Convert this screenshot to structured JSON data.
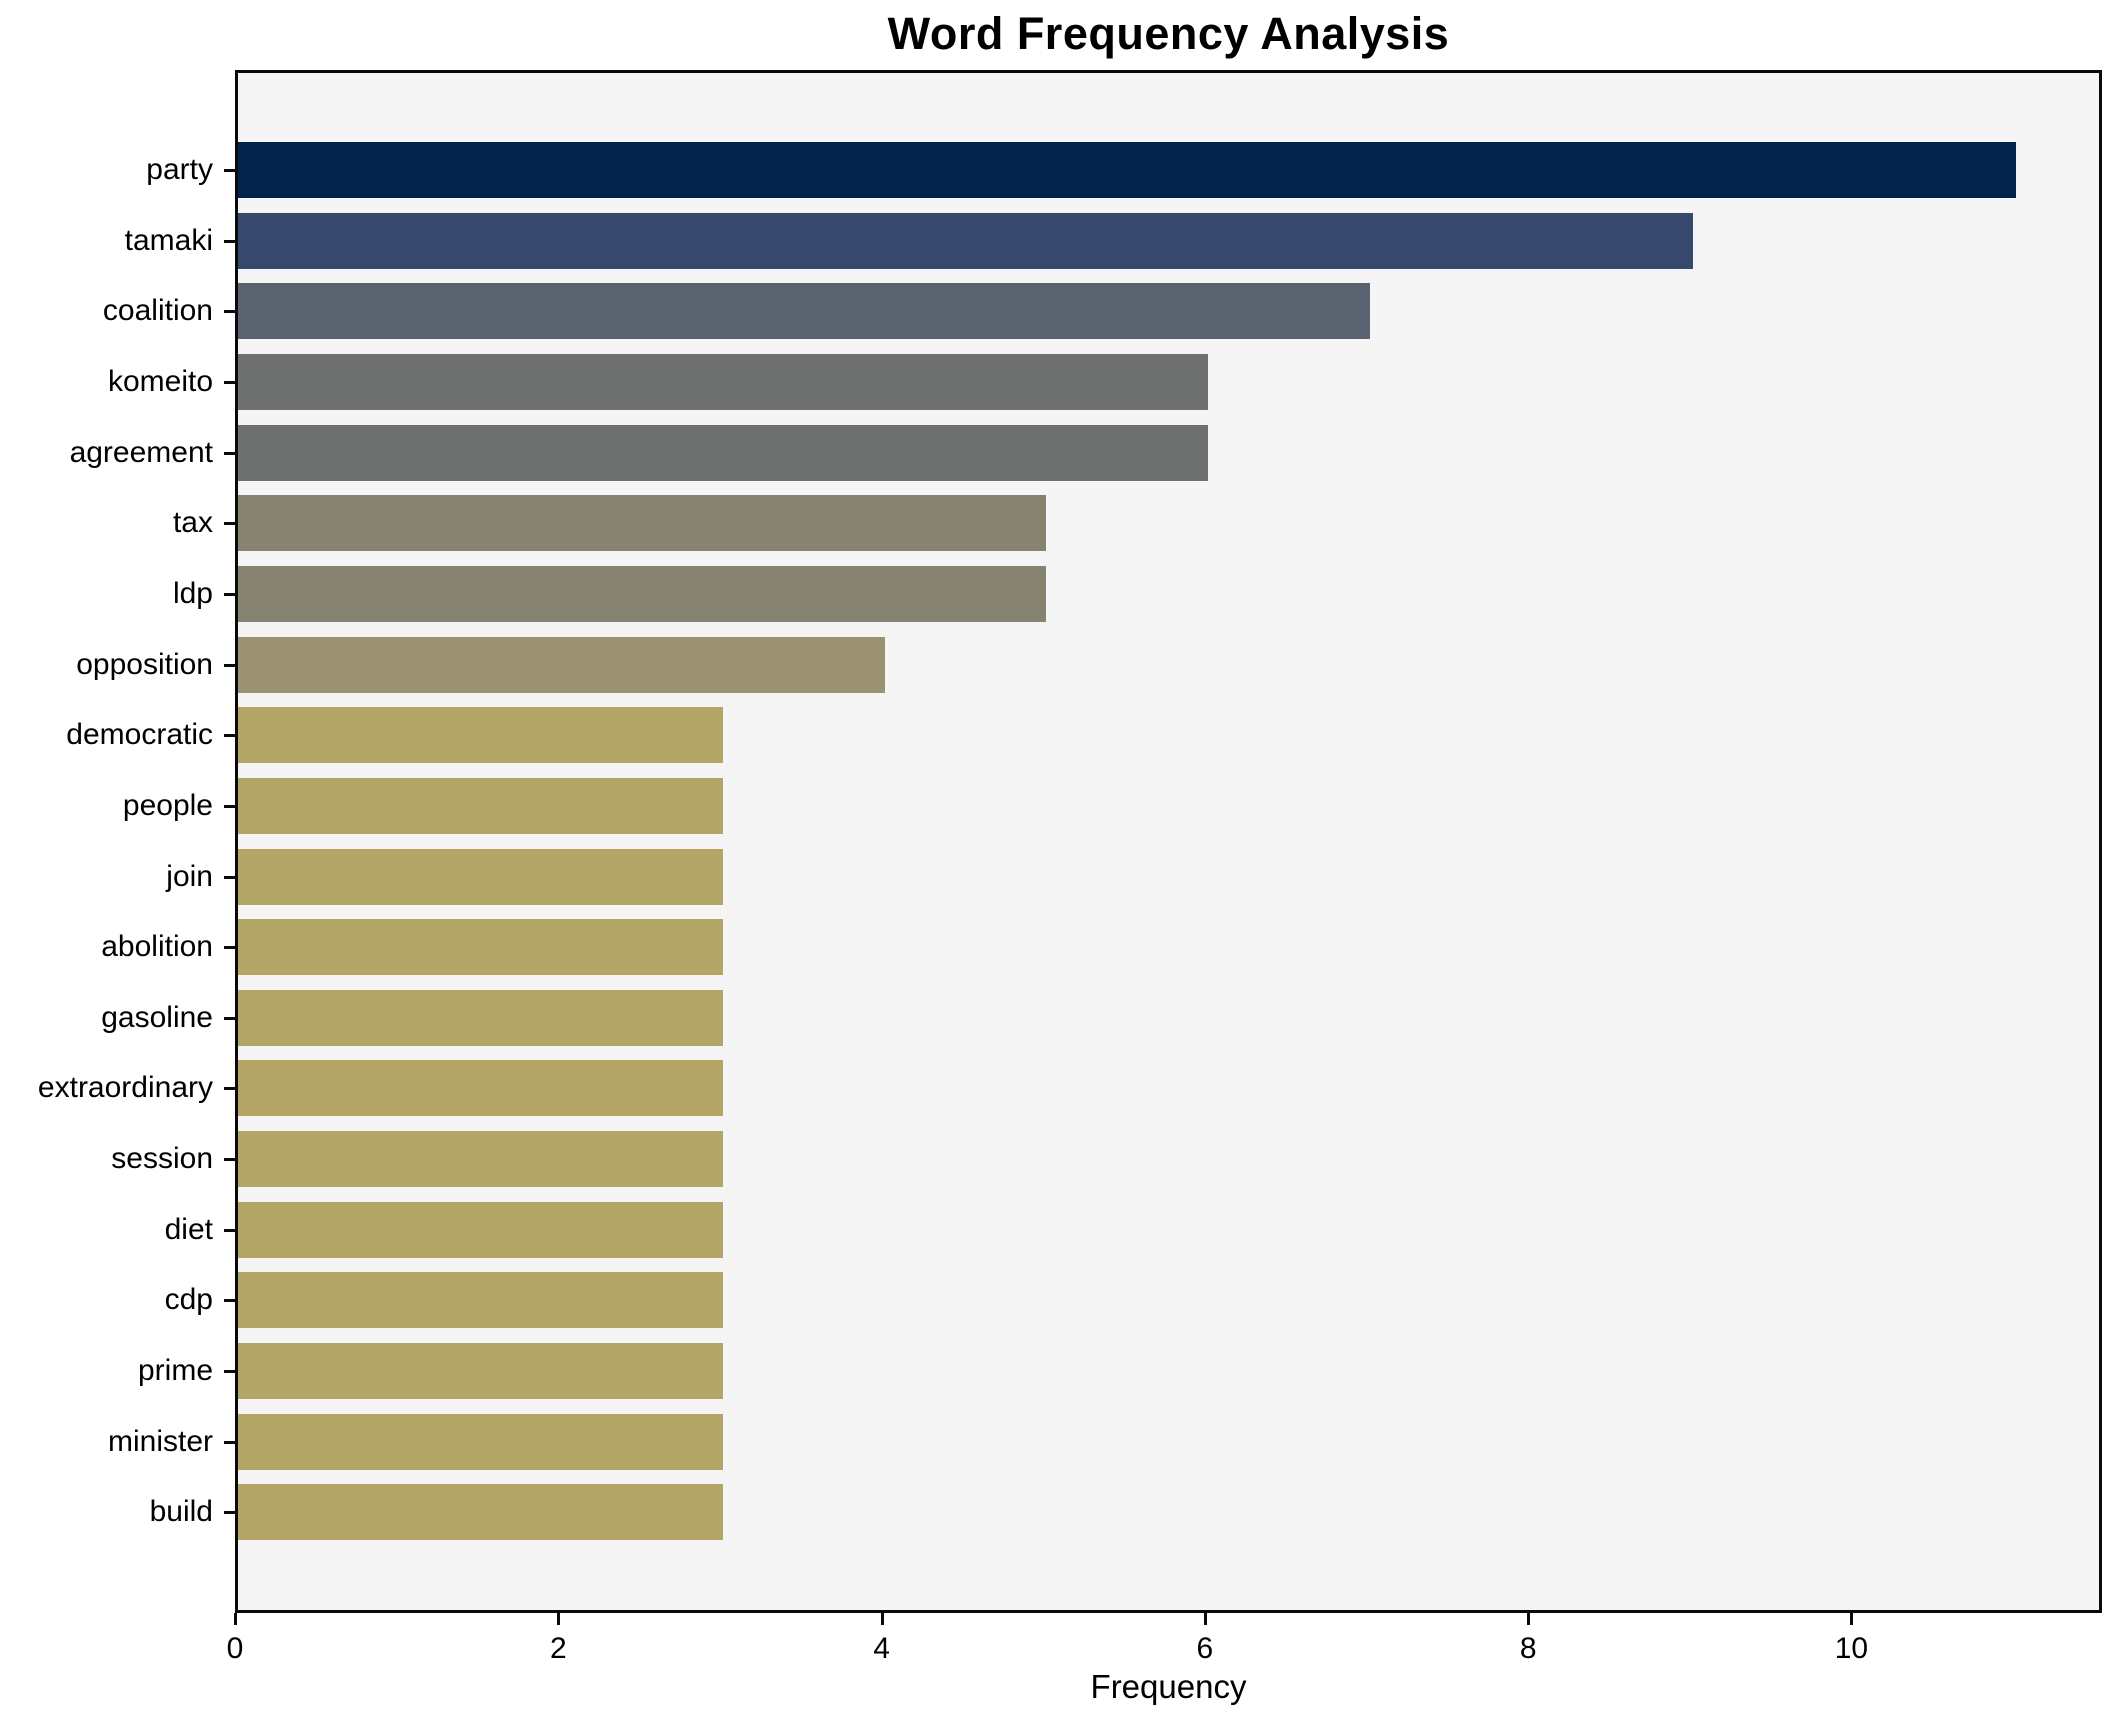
{
  "title": "Word Frequency Analysis",
  "xlabel": "Frequency",
  "chart_data": {
    "type": "bar",
    "orientation": "horizontal",
    "title": "Word Frequency Analysis",
    "xlabel": "Frequency",
    "ylabel": "",
    "categories": [
      "party",
      "tamaki",
      "coalition",
      "komeito",
      "agreement",
      "tax",
      "ldp",
      "opposition",
      "democratic",
      "people",
      "join",
      "abolition",
      "gasoline",
      "extraordinary",
      "session",
      "diet",
      "cdp",
      "prime",
      "minister",
      "build"
    ],
    "values": [
      11,
      9,
      7,
      6,
      6,
      5,
      5,
      4,
      3,
      3,
      3,
      3,
      3,
      3,
      3,
      3,
      3,
      3,
      3,
      3
    ],
    "bar_colors": [
      "#02234c",
      "#36496d",
      "#5c6370",
      "#6f7070",
      "#6f7070",
      "#878371",
      "#878371",
      "#9a9271",
      "#b2a566",
      "#b2a566",
      "#b2a566",
      "#b2a566",
      "#b2a566",
      "#b2a566",
      "#b2a566",
      "#b2a566",
      "#b2a566",
      "#b2a566",
      "#b2a566",
      "#b2a566"
    ],
    "xticks": [
      0,
      2,
      4,
      6,
      8,
      10
    ],
    "xlim": [
      0,
      11.55
    ],
    "grid": false,
    "legend": false,
    "plot_background": "#f5f5f6",
    "figure_background": "#ffffff",
    "spine_color": "#0a0a0a"
  }
}
